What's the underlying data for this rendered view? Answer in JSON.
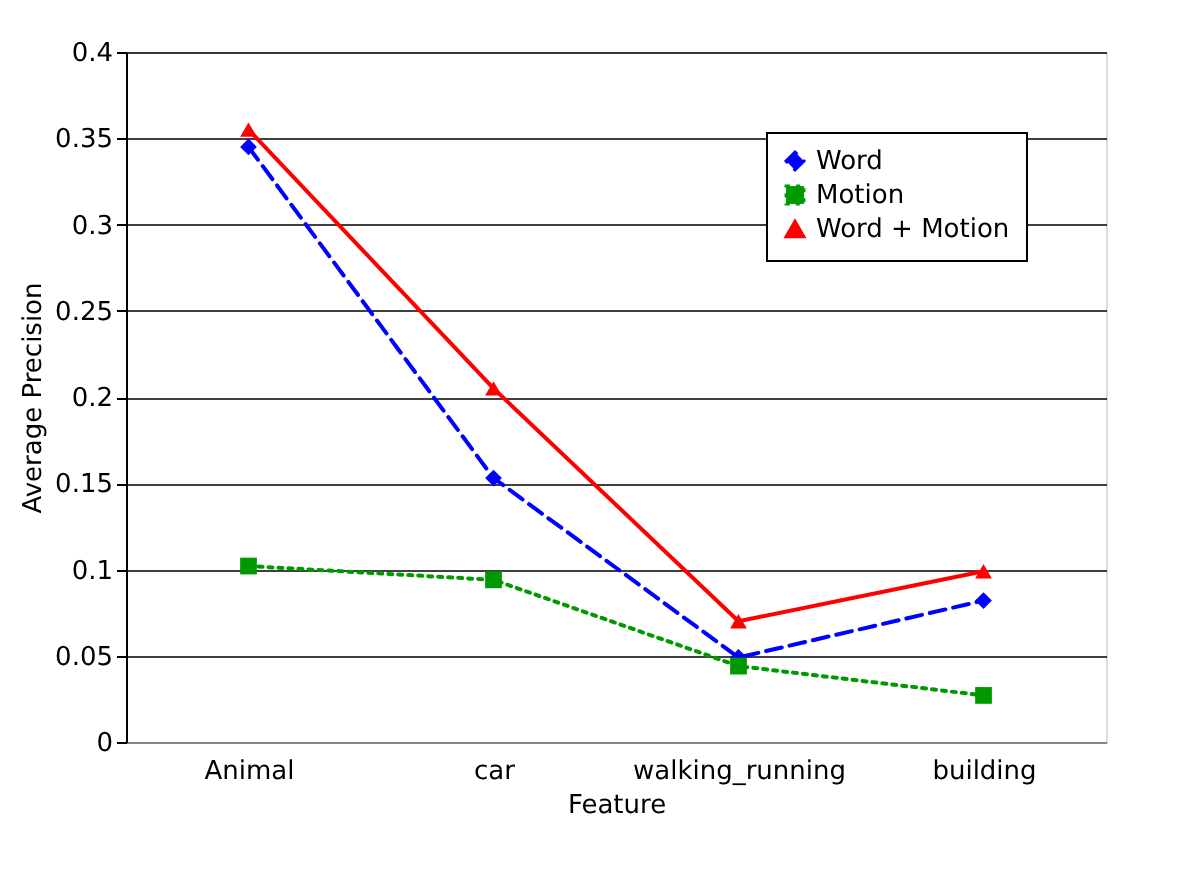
{
  "chart_data": {
    "type": "line",
    "xlabel": "Feature",
    "ylabel": "Average Precision",
    "categories": [
      "Animal",
      "car",
      "walking_running",
      "building"
    ],
    "series": [
      {
        "name": "Word",
        "color": "#0000ff",
        "marker": "diamond",
        "line_style": "dashed",
        "values": [
          0.345,
          0.153,
          0.049,
          0.082
        ]
      },
      {
        "name": "Motion",
        "color": "#009900",
        "marker": "square",
        "line_style": "dotted",
        "values": [
          0.102,
          0.094,
          0.044,
          0.027
        ]
      },
      {
        "name": "Word + Motion",
        "color": "#ff0000",
        "marker": "triangle",
        "line_style": "solid",
        "values": [
          0.355,
          0.205,
          0.07,
          0.099
        ]
      }
    ],
    "ylim": [
      0,
      0.4
    ],
    "yticks": [
      0,
      0.05,
      0.1,
      0.15,
      0.2,
      0.25,
      0.3,
      0.35,
      0.4
    ],
    "grid": "y",
    "legend": "top right"
  }
}
